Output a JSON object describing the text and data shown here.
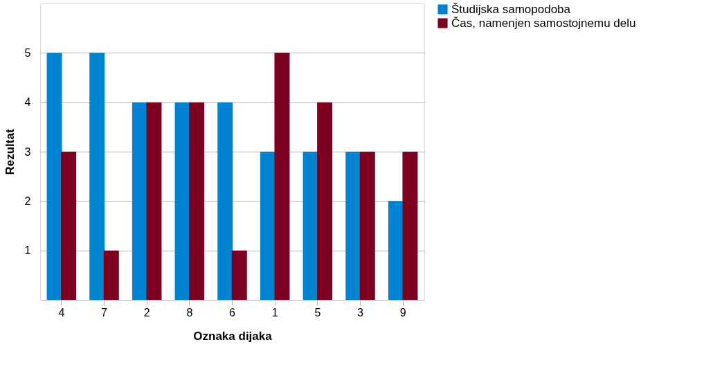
{
  "chart_data": {
    "type": "bar",
    "xlabel": "Oznaka dijaka",
    "ylabel": "Rezultat",
    "categories": [
      "4",
      "7",
      "2",
      "8",
      "6",
      "1",
      "5",
      "3",
      "9"
    ],
    "series": [
      {
        "name": "Študijska samopodoba",
        "color": "#0084d1",
        "values": [
          5,
          5,
          4,
          4,
          4,
          3,
          3,
          3,
          2
        ]
      },
      {
        "name": "Čas, namenjen samostojnemu delu",
        "color": "#7e0021",
        "values": [
          3,
          1,
          4,
          4,
          1,
          5,
          4,
          3,
          3
        ]
      }
    ],
    "ylim": [
      0,
      6
    ],
    "yticks": [
      1,
      2,
      3,
      4,
      5
    ],
    "grid": "y",
    "legend": "right"
  }
}
